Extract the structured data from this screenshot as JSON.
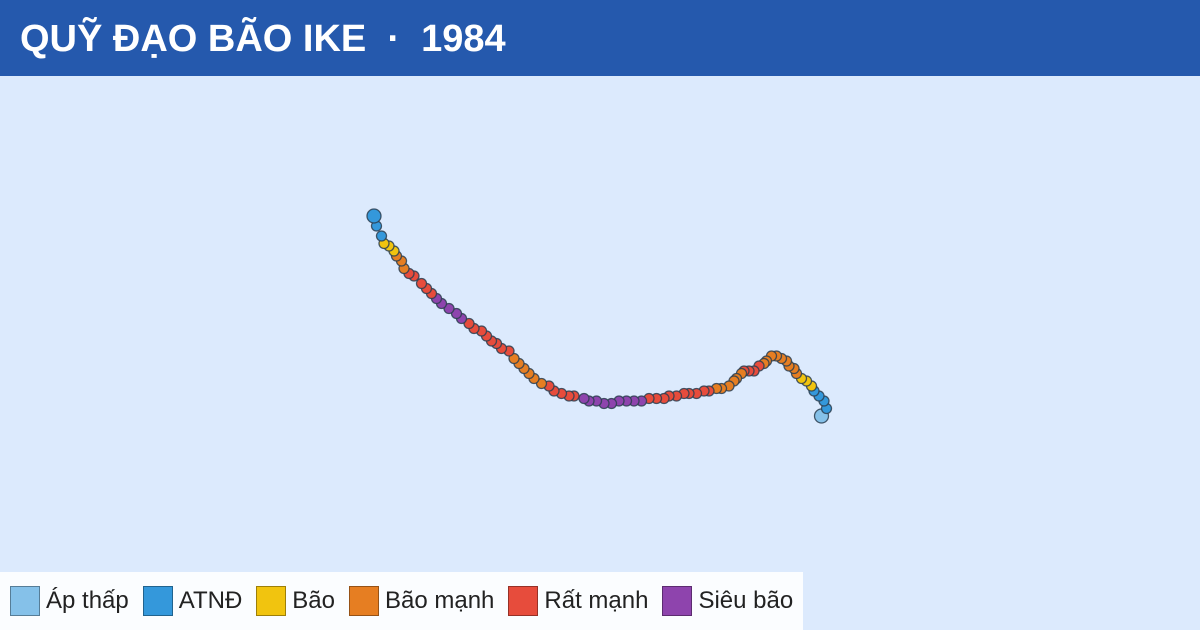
{
  "header": {
    "title": "QUỸ ĐẠO BÃO IKE  ·  1984"
  },
  "legend": [
    {
      "name": "Áp thấp",
      "color": "#85c1e9"
    },
    {
      "name": "ATNĐ",
      "color": "#3498db"
    },
    {
      "name": "Bão",
      "color": "#f1c40f"
    },
    {
      "name": "Bão mạnh",
      "color": "#e67e22"
    },
    {
      "name": "Rất mạnh",
      "color": "#e74c3c"
    },
    {
      "name": "Siêu bão",
      "color": "#8e44ad"
    }
  ],
  "track": {
    "lon": [
      125.9,
      126.1,
      126.0,
      125.8,
      125.6,
      125.5,
      125.3,
      125.1,
      124.9,
      124.8,
      124.6,
      124.5,
      124.3,
      124.1,
      123.9,
      123.7,
      123.6,
      123.4,
      123.2,
      123.0,
      122.8,
      122.7,
      122.5,
      122.4,
      122.2,
      121.9,
      121.7,
      121.4,
      121.2,
      120.9,
      120.6,
      120.4,
      120.1,
      119.8,
      119.6,
      119.3,
      119.0,
      118.7,
      118.4,
      118.1,
      117.8,
      117.5,
      117.2,
      116.9,
      116.6,
      116.4,
      116.0,
      115.8,
      115.5,
      115.2,
      115.0,
      114.7,
      114.4,
      114.2,
      114.0,
      113.8,
      113.6,
      113.4,
      113.1,
      112.9,
      112.7,
      112.5,
      112.3,
      112.0,
      111.8,
      111.5,
      111.3,
      111.0,
      110.7,
      110.5,
      110.3,
      110.1,
      109.9,
      109.6,
      109.4,
      109.2,
      109.1,
      108.9,
      108.8,
      108.6,
      108.4,
      108.3,
      108.1,
      108.0
    ],
    "lat": [
      13.0,
      13.3,
      13.6,
      13.8,
      14.0,
      14.2,
      14.4,
      14.5,
      14.7,
      14.9,
      15.0,
      15.2,
      15.3,
      15.4,
      15.4,
      15.2,
      15.1,
      15.0,
      14.8,
      14.8,
      14.8,
      14.7,
      14.5,
      14.4,
      14.2,
      14.1,
      14.1,
      14.0,
      14.0,
      13.9,
      13.9,
      13.9,
      13.8,
      13.8,
      13.7,
      13.7,
      13.7,
      13.6,
      13.6,
      13.6,
      13.6,
      13.5,
      13.5,
      13.6,
      13.6,
      13.7,
      13.8,
      13.8,
      13.9,
      14.0,
      14.2,
      14.3,
      14.5,
      14.7,
      14.9,
      15.1,
      15.3,
      15.6,
      15.7,
      15.9,
      16.0,
      16.2,
      16.4,
      16.5,
      16.7,
      16.9,
      17.1,
      17.3,
      17.5,
      17.7,
      17.9,
      18.1,
      18.3,
      18.6,
      18.7,
      18.9,
      19.2,
      19.4,
      19.6,
      19.8,
      19.9,
      20.2,
      20.6,
      21.0
    ],
    "category": [
      0,
      1,
      1,
      1,
      1,
      2,
      2,
      2,
      3,
      3,
      3,
      3,
      3,
      3,
      3,
      3,
      3,
      4,
      4,
      4,
      4,
      3,
      3,
      3,
      3,
      3,
      3,
      4,
      4,
      4,
      4,
      4,
      4,
      4,
      4,
      4,
      4,
      5,
      5,
      5,
      5,
      5,
      5,
      5,
      5,
      5,
      4,
      4,
      4,
      4,
      4,
      3,
      3,
      3,
      3,
      3,
      3,
      4,
      4,
      4,
      4,
      4,
      4,
      4,
      4,
      5,
      5,
      5,
      5,
      5,
      4,
      4,
      4,
      4,
      4,
      3,
      3,
      3,
      2,
      2,
      2,
      1,
      1,
      1
    ]
  }
}
